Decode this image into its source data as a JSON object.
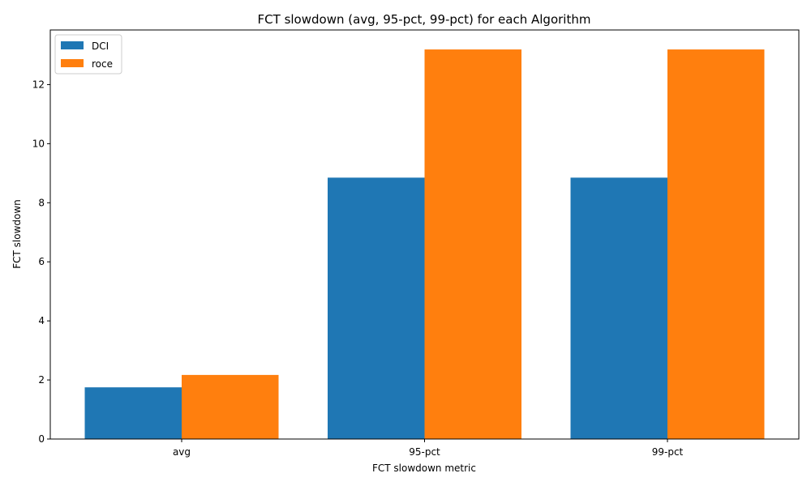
{
  "chart_data": {
    "type": "bar",
    "title": "FCT slowdown (avg, 95-pct, 99-pct) for each Algorithm",
    "xlabel": "FCT slowdown metric",
    "ylabel": "FCT slowdown",
    "categories": [
      "avg",
      "95-pct",
      "99-pct"
    ],
    "series": [
      {
        "name": "DCI",
        "values": [
          1.75,
          8.85,
          8.85
        ],
        "color": "#1f77b4"
      },
      {
        "name": "roce",
        "values": [
          2.17,
          13.19,
          13.19
        ],
        "color": "#ff7f0e"
      }
    ],
    "ylim": [
      0,
      13.85
    ],
    "yticks": [
      0,
      2,
      4,
      6,
      8,
      10,
      12
    ],
    "grid": false,
    "legend": "top-left"
  }
}
